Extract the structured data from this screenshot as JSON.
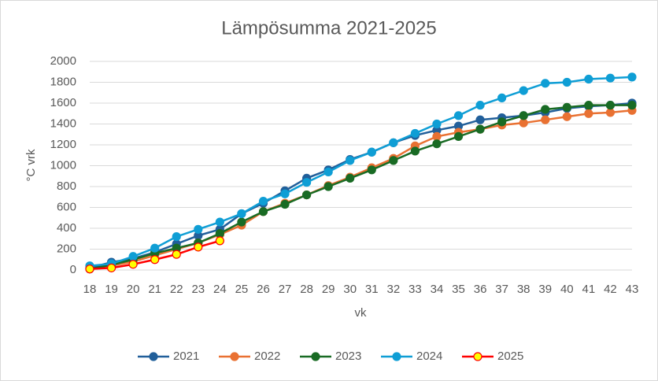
{
  "chart_data": {
    "type": "line",
    "title": "Lämpösumma 2021-2025",
    "x_label": "vk",
    "y_label": "°C vrk",
    "categories": [
      "18",
      "19",
      "20",
      "21",
      "22",
      "23",
      "24",
      "25",
      "26",
      "27",
      "28",
      "29",
      "30",
      "31",
      "32",
      "33",
      "34",
      "35",
      "36",
      "37",
      "38",
      "39",
      "40",
      "41",
      "42",
      "43"
    ],
    "ylim": [
      0,
      2000
    ],
    "yticks": [
      0,
      200,
      400,
      600,
      800,
      1000,
      1200,
      1400,
      1600,
      1800,
      2000
    ],
    "grid": true,
    "legend": "bottom",
    "series": [
      {
        "name": "2021",
        "color": "#215F9A",
        "values": [
          20,
          75,
          110,
          170,
          250,
          330,
          390,
          540,
          640,
          760,
          880,
          960,
          1060,
          1130,
          1220,
          1290,
          1340,
          1380,
          1440,
          1460,
          1480,
          1510,
          1550,
          1570,
          1580,
          1600
        ]
      },
      {
        "name": "2022",
        "color": "#E97132",
        "values": [
          10,
          40,
          80,
          140,
          200,
          260,
          340,
          430,
          560,
          640,
          720,
          810,
          890,
          980,
          1070,
          1190,
          1280,
          1320,
          1350,
          1390,
          1410,
          1440,
          1470,
          1500,
          1510,
          1530
        ]
      },
      {
        "name": "2023",
        "color": "#196B24",
        "values": [
          10,
          50,
          100,
          160,
          210,
          260,
          350,
          460,
          560,
          630,
          720,
          800,
          880,
          960,
          1050,
          1140,
          1210,
          1280,
          1350,
          1420,
          1480,
          1540,
          1560,
          1580,
          1580,
          1580
        ]
      },
      {
        "name": "2024",
        "color": "#0F9ED5",
        "values": [
          40,
          60,
          130,
          210,
          320,
          390,
          460,
          540,
          660,
          730,
          840,
          940,
          1050,
          1130,
          1220,
          1310,
          1400,
          1480,
          1580,
          1650,
          1720,
          1790,
          1800,
          1830,
          1840,
          1850
        ]
      },
      {
        "name": "2025",
        "color": "#FF0000",
        "marker_color": "#FFFF00",
        "values": [
          10,
          20,
          55,
          100,
          150,
          220,
          280,
          null,
          null,
          null,
          null,
          null,
          null,
          null,
          null,
          null,
          null,
          null,
          null,
          null,
          null,
          null,
          null,
          null,
          null,
          null
        ]
      }
    ]
  }
}
